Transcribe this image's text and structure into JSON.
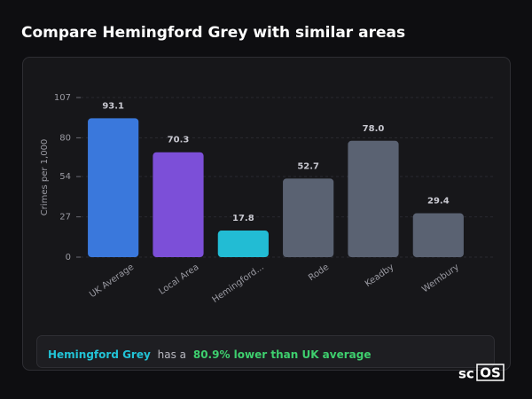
{
  "chart_data": {
    "type": "bar",
    "title": "Compare Hemingford Grey with similar areas",
    "y_label": "Crimes per 1,000",
    "categories": [
      "UK Average",
      "Local Area",
      "Hemingford...",
      "Rode",
      "Keadby",
      "Wembury"
    ],
    "values": [
      93.1,
      70.3,
      17.8,
      52.7,
      78.0,
      29.4
    ],
    "value_labels": [
      "93.1",
      "70.3",
      "17.8",
      "52.7",
      "78.0",
      "29.4"
    ],
    "colors": [
      "#3a78dc",
      "#7c4fd8",
      "#22bcd4",
      "#5a6272",
      "#5a6272",
      "#5a6272"
    ],
    "ylim": [
      0,
      107
    ],
    "yticks": [
      0,
      27,
      54,
      80,
      107
    ],
    "grid": true,
    "annotation": {
      "area": "Hemingford Grey",
      "middle": "has a",
      "highlight": "80.9% lower than UK average"
    },
    "logo": {
      "prefix": "sc",
      "boxed": "OS"
    }
  }
}
